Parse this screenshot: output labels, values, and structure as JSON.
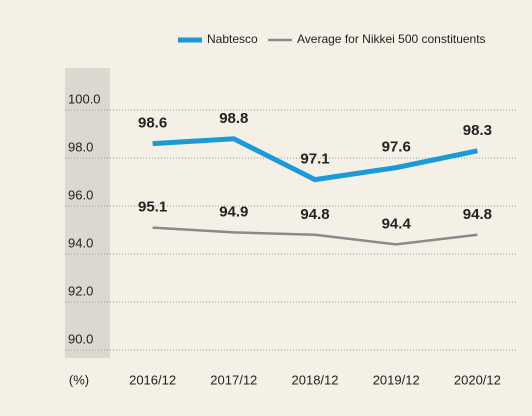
{
  "chart_data": {
    "type": "line",
    "y_label": "(%)",
    "categories": [
      "2016/12",
      "2017/12",
      "2018/12",
      "2019/12",
      "2020/12"
    ],
    "series": [
      {
        "name": "Nabtesco",
        "color": "#1b9ad7",
        "values": [
          98.6,
          98.8,
          97.1,
          97.6,
          98.3
        ]
      },
      {
        "name": "Average for Nikkei 500 constituents",
        "color": "#8a8a8a",
        "values": [
          95.1,
          94.9,
          94.8,
          94.4,
          94.8
        ]
      }
    ],
    "ylim": [
      90,
      100
    ],
    "yticks": [
      {
        "value": 90,
        "label": "90.0"
      },
      {
        "value": 92,
        "label": "92.0"
      },
      {
        "value": 94,
        "label": "94.0"
      },
      {
        "value": 96,
        "label": "96.0"
      },
      {
        "value": 98,
        "label": "98.0"
      },
      {
        "value": 100,
        "label": "100.0"
      }
    ],
    "grid": true
  }
}
